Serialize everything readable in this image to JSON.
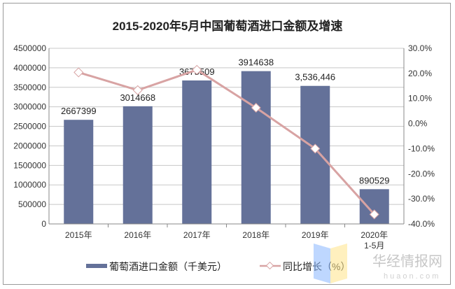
{
  "chart_data": {
    "type": "bar+line",
    "title": "2015-2020年5月中国葡萄酒进口金额及增速",
    "categories": [
      "2015年",
      "2016年",
      "2017年",
      "2018年",
      "2019年",
      "2020年 1-5月"
    ],
    "series": [
      {
        "name": "葡萄酒进口金额（千美元）",
        "type": "bar",
        "axis": "left",
        "values": [
          2667399,
          3014668,
          3675509,
          3914638,
          3536446,
          890529
        ],
        "labels": [
          "2667399",
          "3014668",
          "3675509",
          "3914638",
          "3,536,446",
          "890529"
        ]
      },
      {
        "name": "同比增长（%）",
        "type": "line",
        "axis": "right",
        "values": [
          20.4,
          13.3,
          21.4,
          6.3,
          -10.0,
          -36.2
        ]
      }
    ],
    "left_axis": {
      "ylim": [
        0,
        4500000
      ],
      "ticks": [
        "0",
        "500000",
        "1000000",
        "1500000",
        "2000000",
        "2500000",
        "3000000",
        "3500000",
        "4000000",
        "4500000"
      ]
    },
    "right_axis": {
      "ylim": [
        -40,
        30
      ],
      "ticks": [
        "-40.0%",
        "-30.0%",
        "-20.0%",
        "-10.0%",
        "0.0%",
        "10.0%",
        "20.0%",
        "30.0%"
      ]
    },
    "grid": true,
    "legend": "bottom",
    "colors": {
      "bar": "#647199",
      "line": "#d8a3a3"
    }
  },
  "watermark": "华经情报网 huaon.com"
}
